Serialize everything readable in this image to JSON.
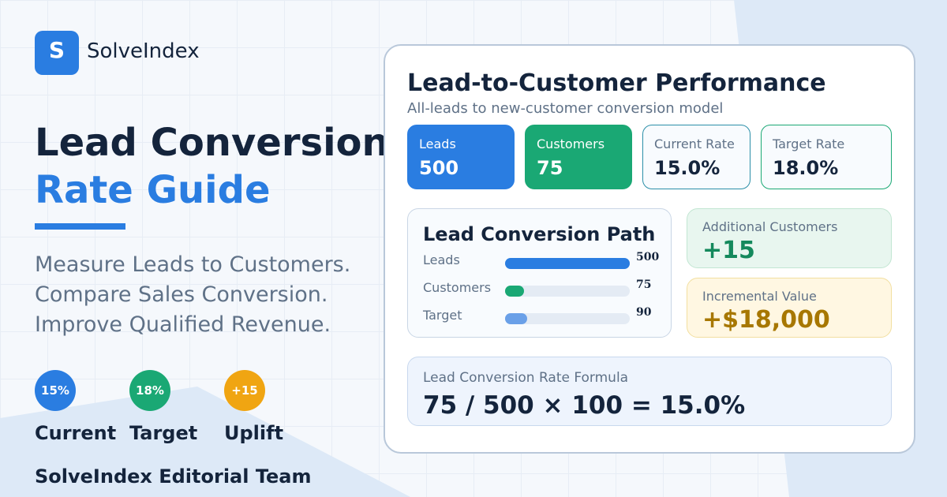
{
  "brand": {
    "logo_letter": "S",
    "name": "SolveIndex"
  },
  "hero": {
    "title_line1": "Lead Conversion",
    "title_line2": "Rate Guide",
    "subtitle": [
      "Measure Leads to Customers.",
      "Compare Sales Conversion.",
      "Improve Qualified Revenue."
    ]
  },
  "badges": [
    {
      "value": "15%",
      "label": "Current"
    },
    {
      "value": "18%",
      "label": "Target"
    },
    {
      "value": "+15",
      "label": "Uplift"
    }
  ],
  "author": "SolveIndex Editorial Team",
  "card": {
    "title": "Lead-to-Customer Performance",
    "subtitle": "All-leads to new-customer conversion model",
    "tiles": [
      {
        "label": "Leads",
        "value": "500"
      },
      {
        "label": "Customers",
        "value": "75"
      },
      {
        "label": "Current Rate",
        "value": "15.0%"
      },
      {
        "label": "Target Rate",
        "value": "18.0%"
      }
    ],
    "path": {
      "title": "Lead Conversion Path",
      "rows": [
        {
          "label": "Leads",
          "value": 500
        },
        {
          "label": "Customers",
          "value": 75
        },
        {
          "label": "Target",
          "value": 90
        }
      ]
    },
    "additional": {
      "label": "Additional Customers",
      "value": "+15"
    },
    "incremental": {
      "label": "Incremental Value",
      "value": "+$18,000"
    },
    "formula": {
      "label": "Lead Conversion Rate Formula",
      "value": "75 / 500 × 100 = 15.0%"
    }
  }
}
